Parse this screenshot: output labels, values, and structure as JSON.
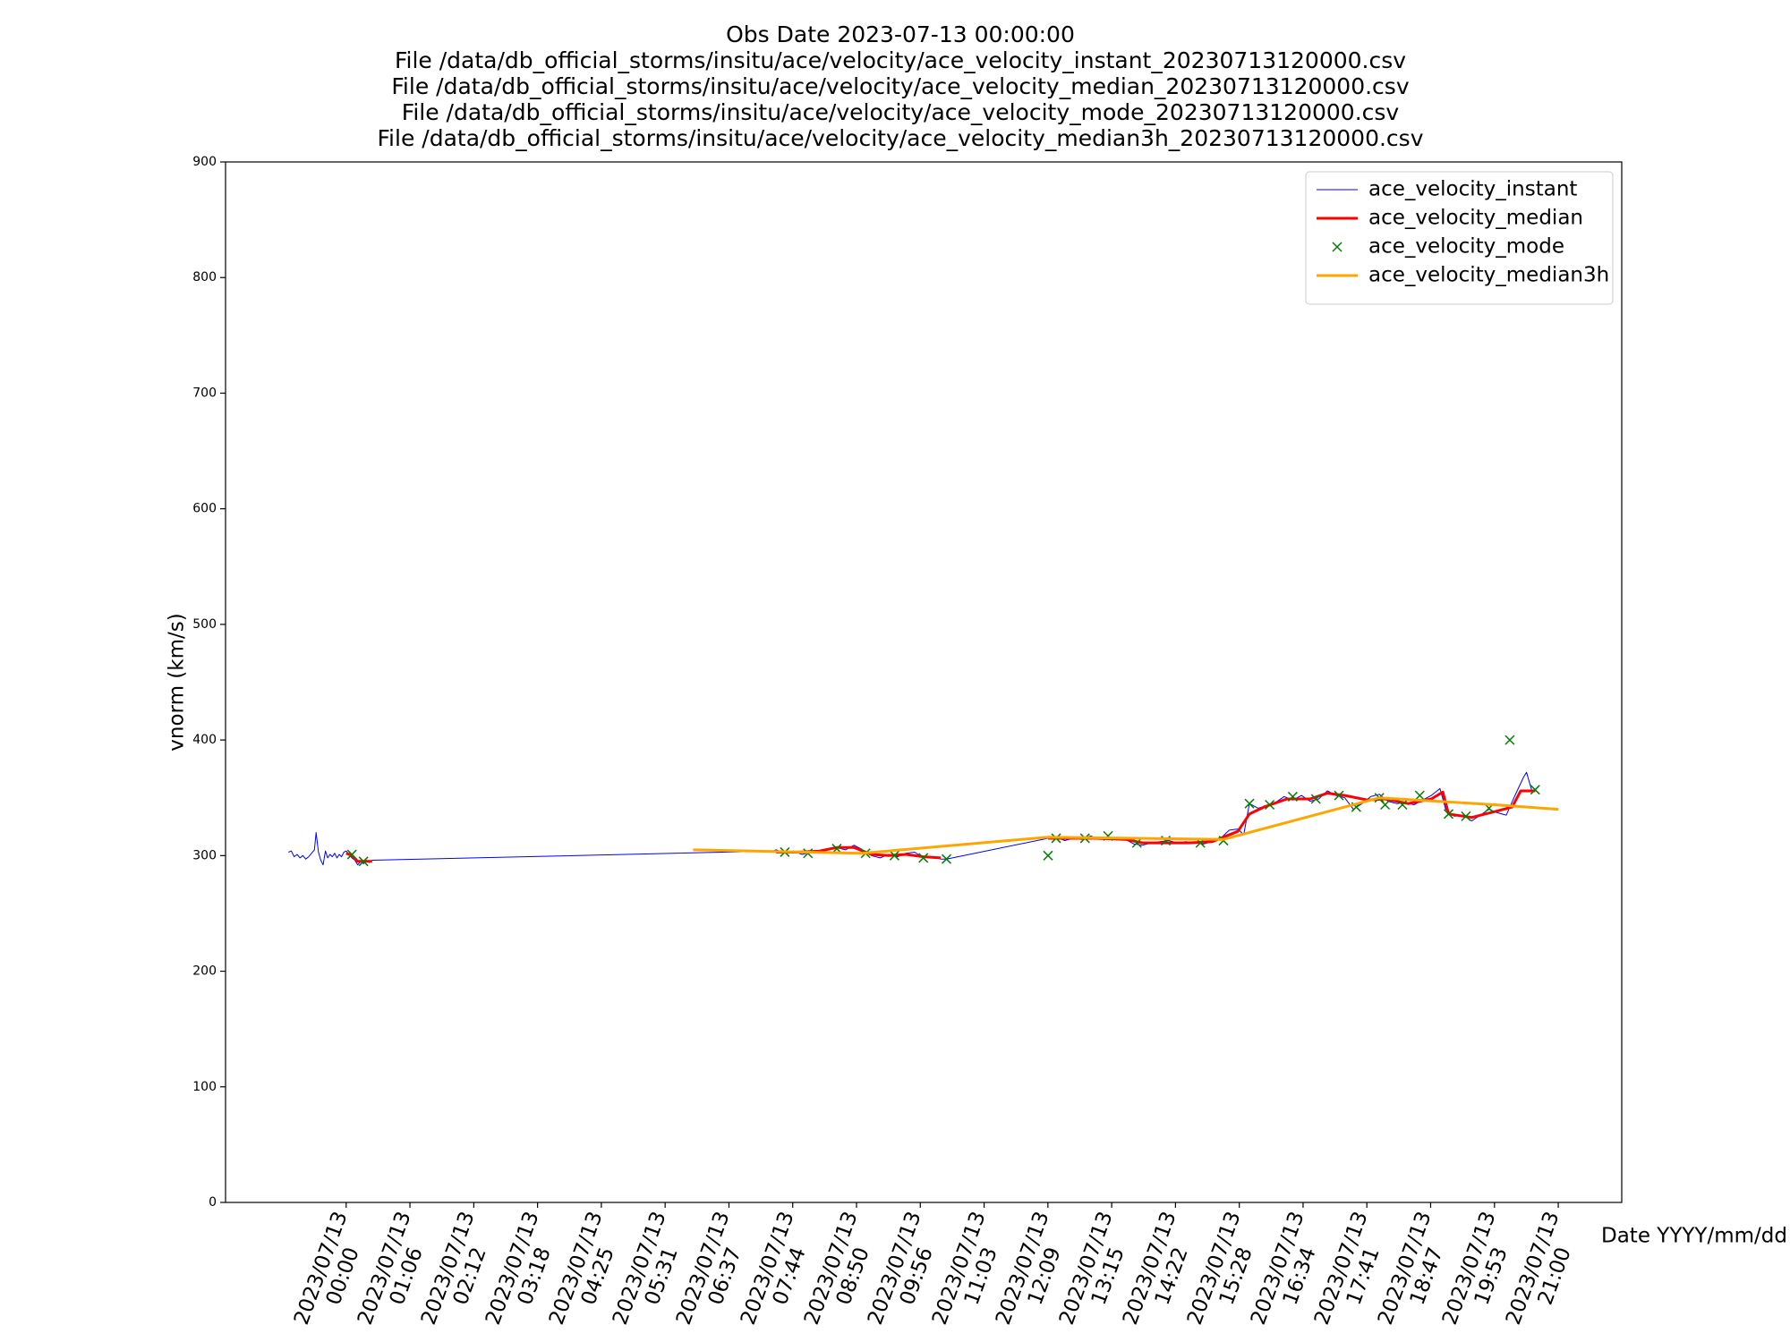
{
  "chart_data": {
    "type": "line",
    "title": [
      "Obs Date 2023-07-13 00:00:00",
      "File /data/db_official_storms/insitu/ace/velocity/ace_velocity_instant_20230713120000.csv",
      "File /data/db_official_storms/insitu/ace/velocity/ace_velocity_median_20230713120000.csv",
      "File /data/db_official_storms/insitu/ace/velocity/ace_velocity_mode_20230713120000.csv",
      "File /data/db_official_storms/insitu/ace/velocity/ace_velocity_median3h_20230713120000.csv"
    ],
    "xlabel": "Date YYYY/mm/dd",
    "ylabel": "vnorm (km/s)",
    "xlim": [
      -2.09,
      22.1
    ],
    "ylim": [
      0,
      900
    ],
    "yticks": [
      0,
      100,
      200,
      300,
      400,
      500,
      600,
      700,
      800,
      900
    ],
    "xticks": [
      {
        "value": 0,
        "label": "2023/07/13\n00:00"
      },
      {
        "value": 1.105,
        "label": "2023/07/13\n01:06"
      },
      {
        "value": 2.211,
        "label": "2023/07/13\n02:12"
      },
      {
        "value": 3.316,
        "label": "2023/07/13\n03:18"
      },
      {
        "value": 4.421,
        "label": "2023/07/13\n04:25"
      },
      {
        "value": 5.526,
        "label": "2023/07/13\n05:31"
      },
      {
        "value": 6.632,
        "label": "2023/07/13\n06:37"
      },
      {
        "value": 7.737,
        "label": "2023/07/13\n07:44"
      },
      {
        "value": 8.842,
        "label": "2023/07/13\n08:50"
      },
      {
        "value": 9.947,
        "label": "2023/07/13\n09:56"
      },
      {
        "value": 11.053,
        "label": "2023/07/13\n11:03"
      },
      {
        "value": 12.158,
        "label": "2023/07/13\n12:09"
      },
      {
        "value": 13.263,
        "label": "2023/07/13\n13:15"
      },
      {
        "value": 14.368,
        "label": "2023/07/13\n14:22"
      },
      {
        "value": 15.474,
        "label": "2023/07/13\n15:28"
      },
      {
        "value": 16.579,
        "label": "2023/07/13\n16:34"
      },
      {
        "value": 17.684,
        "label": "2023/07/13\n17:41"
      },
      {
        "value": 18.789,
        "label": "2023/07/13\n18:47"
      },
      {
        "value": 19.895,
        "label": "2023/07/13\n19:53"
      },
      {
        "value": 21,
        "label": "2023/07/13\n21:00"
      }
    ],
    "legend": "upper right",
    "series": [
      {
        "name": "ace_velocity_instant",
        "color": "#0000ff",
        "style": "thin",
        "x": [
          -1.0,
          -0.95,
          -0.9,
          -0.85,
          -0.8,
          -0.75,
          -0.7,
          -0.65,
          -0.6,
          -0.55,
          -0.52,
          -0.48,
          -0.44,
          -0.4,
          -0.36,
          -0.32,
          -0.28,
          -0.24,
          -0.2,
          -0.16,
          -0.12,
          -0.08,
          -0.04,
          0,
          0.05,
          0.1,
          0.15,
          0.2,
          0.25,
          0.3,
          0.35,
          0.4,
          0.45,
          7.4,
          7.45,
          7.6,
          7.75,
          7.9,
          8.05,
          8.2,
          8.35,
          8.5,
          8.65,
          8.8,
          8.95,
          9.1,
          9.25,
          9.4,
          9.55,
          9.7,
          9.85,
          10.0,
          10.15,
          10.3,
          10.4,
          12.16,
          12.3,
          12.45,
          12.6,
          12.75,
          12.9,
          13.05,
          13.2,
          13.35,
          13.5,
          13.65,
          13.8,
          13.95,
          14.1,
          14.25,
          14.4,
          14.55,
          14.7,
          14.85,
          15.0,
          15.15,
          15.3,
          15.45,
          15.55,
          15.65,
          15.8,
          15.95,
          16.1,
          16.25,
          16.4,
          16.55,
          16.7,
          16.85,
          17.0,
          17.15,
          17.3,
          17.45,
          17.6,
          17.75,
          17.9,
          18.05,
          18.2,
          18.35,
          18.5,
          18.65,
          18.8,
          18.95,
          19.05,
          19.2,
          19.35,
          19.5,
          19.65,
          19.8,
          19.95,
          20.1,
          20.25,
          20.4,
          20.45,
          20.55,
          20.6
        ],
        "values": [
          303,
          304,
          299,
          301,
          298,
          300,
          297,
          299,
          302,
          305,
          320,
          303,
          296,
          292,
          304,
          298,
          301,
          299,
          302,
          298,
          301,
          299,
          303,
          304,
          301,
          298,
          296,
          292,
          295,
          293,
          296,
          294,
          296,
          304,
          305,
          302,
          304,
          301,
          303,
          302,
          306,
          307,
          305,
          309,
          305,
          300,
          298,
          301,
          299,
          302,
          303,
          298,
          299,
          297,
          297,
          315,
          316,
          313,
          315,
          314,
          317,
          314,
          316,
          315,
          314,
          310,
          309,
          311,
          312,
          313,
          311,
          312,
          311,
          310,
          312,
          315,
          322,
          323,
          318,
          345,
          341,
          343,
          346,
          351,
          348,
          352,
          347,
          349,
          356,
          352,
          350,
          340,
          345,
          351,
          353,
          347,
          345,
          346,
          344,
          348,
          352,
          358,
          340,
          334,
          335,
          330,
          335,
          340,
          337,
          335,
          352,
          368,
          372,
          355,
          356
        ]
      },
      {
        "name": "ace_velocity_median",
        "color": "#ff0000",
        "style": "thick",
        "x": [
          0,
          0.1,
          0.2,
          0.45,
          null,
          7.45,
          7.8,
          8.2,
          8.5,
          8.8,
          9.1,
          9.4,
          9.7,
          10.0,
          10.3,
          null,
          12.16,
          12.6,
          13.0,
          13.5,
          13.8,
          14.2,
          14.6,
          15.0,
          15.2,
          15.45,
          15.65,
          15.9,
          16.3,
          16.7,
          17.0,
          17.3,
          17.7,
          18.0,
          18.4,
          18.8,
          19.0,
          19.1,
          19.5,
          19.9,
          20.2,
          20.35,
          20.6
        ],
        "values": [
          302,
          300,
          295,
          295,
          null,
          303,
          303,
          304,
          307,
          307,
          301,
          300,
          301,
          299,
          298,
          null,
          315,
          315,
          315,
          314,
          311,
          311,
          311,
          312,
          316,
          321,
          336,
          342,
          349,
          349,
          354,
          352,
          348,
          349,
          345,
          349,
          355,
          336,
          333,
          338,
          342,
          356,
          356
        ]
      },
      {
        "name": "ace_velocity_mode",
        "color": "#008000",
        "style": "x",
        "x": [
          0.1,
          0.3,
          7.6,
          8.0,
          8.5,
          9.0,
          9.5,
          10.0,
          10.4,
          12.16,
          12.3,
          12.8,
          13.2,
          13.7,
          14.2,
          14.8,
          15.2,
          15.65,
          16.0,
          16.4,
          16.8,
          17.2,
          17.5,
          17.9,
          18.0,
          18.3,
          18.6,
          19.1,
          19.4,
          19.8,
          20.16,
          20.6
        ],
        "values": [
          301,
          295,
          303,
          302,
          306,
          302,
          300,
          298,
          297,
          300,
          315,
          315,
          317,
          311,
          313,
          311,
          313,
          345,
          344,
          351,
          349,
          352,
          342,
          350,
          344,
          344,
          352,
          336,
          334,
          341,
          400,
          357
        ]
      },
      {
        "name": "ace_velocity_median3h",
        "color": "#ffa500",
        "style": "thick",
        "x": [
          6.01,
          8.94,
          12.16,
          15.2,
          17.9,
          19.9,
          21.0
        ],
        "values": [
          305,
          302,
          316,
          314,
          350,
          344,
          340
        ]
      }
    ]
  }
}
